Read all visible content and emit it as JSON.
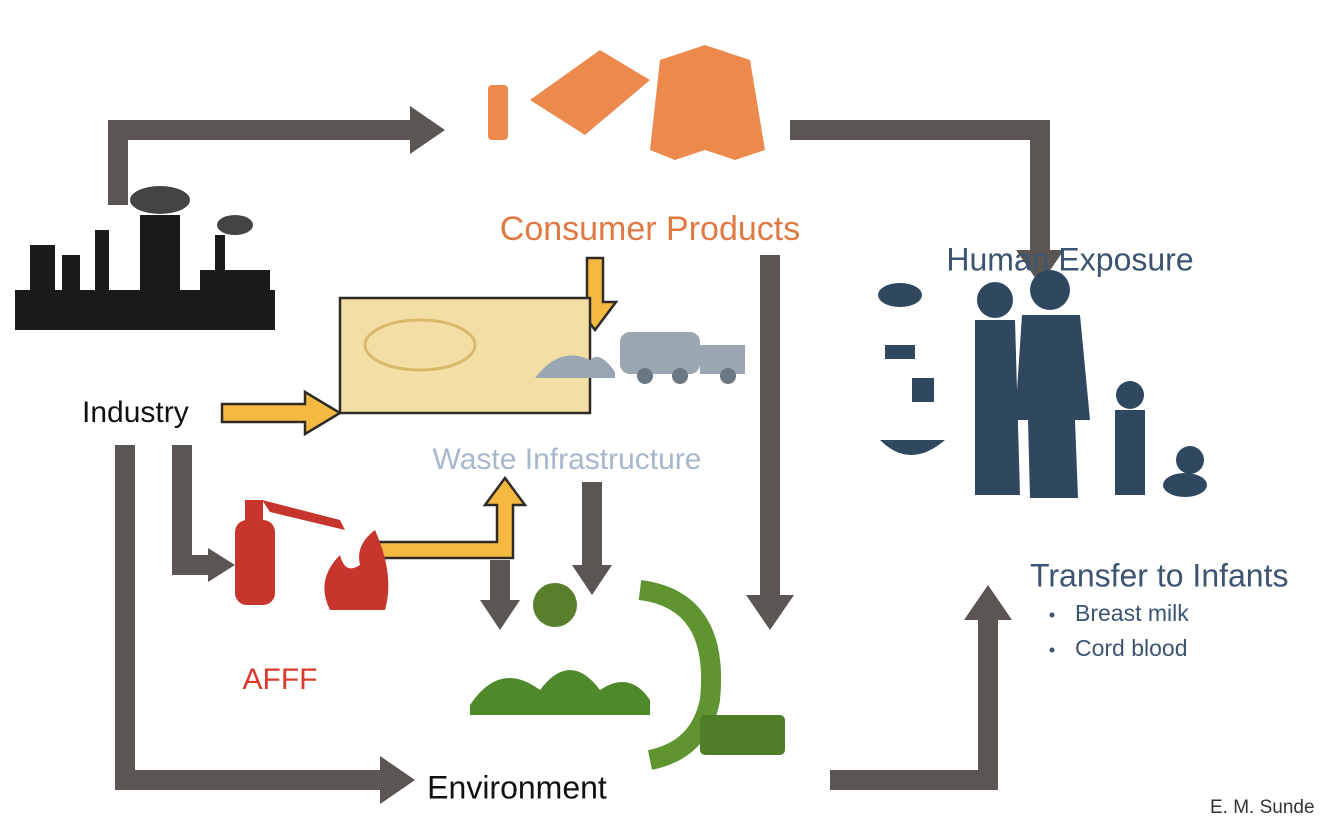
{
  "nodes": [
    {
      "label": "Consumer Products"
    },
    {
      "label": "Human Exposure"
    },
    {
      "label": "Industry"
    },
    {
      "label": "Waste Infrastructure"
    },
    {
      "label": "AFFF"
    },
    {
      "label": "Environment"
    }
  ],
  "transfer": {
    "title": "Transfer to Infants",
    "items": [
      "Breast milk",
      "Cord blood"
    ]
  },
  "credit": "E. M. Sunde"
}
